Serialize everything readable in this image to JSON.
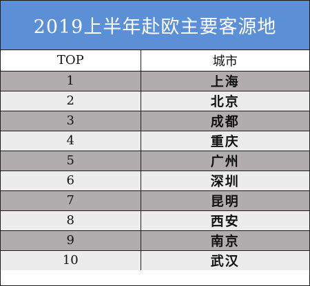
{
  "title": "2019上半年赴欧主要客源地",
  "columns": {
    "rank": "TOP",
    "city": "城市"
  },
  "rows": [
    {
      "rank": "1",
      "city": "上海"
    },
    {
      "rank": "2",
      "city": "北京"
    },
    {
      "rank": "3",
      "city": "成都"
    },
    {
      "rank": "4",
      "city": "重庆"
    },
    {
      "rank": "5",
      "city": "广州"
    },
    {
      "rank": "6",
      "city": "深圳"
    },
    {
      "rank": "7",
      "city": "昆明"
    },
    {
      "rank": "8",
      "city": "西安"
    },
    {
      "rank": "9",
      "city": "南京"
    },
    {
      "rank": "10",
      "city": "武汉"
    }
  ],
  "colors": {
    "title_background": "#5b8fd6",
    "row_dark": "#b1adae",
    "row_light": "#ececec"
  }
}
